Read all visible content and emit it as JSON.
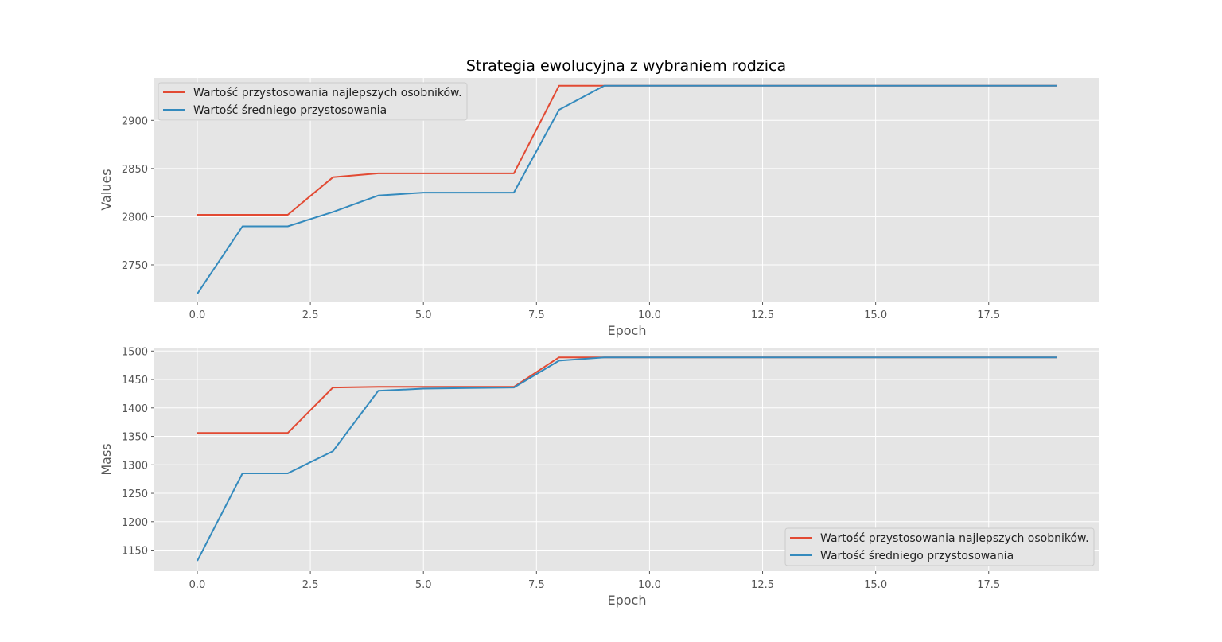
{
  "figure": {
    "title": "Strategia ewolucyjna z wybraniem rodzica"
  },
  "chart_data": [
    {
      "type": "line",
      "title": "Strategia ewolucyjna z wybraniem rodzica",
      "xlabel": "Epoch",
      "ylabel": "Values",
      "xlim": [
        -0.95,
        19.95
      ],
      "ylim": [
        2712,
        2944
      ],
      "xticks": [
        0.0,
        2.5,
        5.0,
        7.5,
        10.0,
        12.5,
        15.0,
        17.5
      ],
      "xtick_labels": [
        "0.0",
        "2.5",
        "5.0",
        "7.5",
        "10.0",
        "12.5",
        "15.0",
        "17.5"
      ],
      "yticks": [
        2750,
        2800,
        2850,
        2900
      ],
      "ytick_labels": [
        "2750",
        "2800",
        "2850",
        "2900"
      ],
      "grid": true,
      "legend_position": "upper-left",
      "x": [
        0,
        1,
        2,
        3,
        4,
        5,
        6,
        7,
        8,
        9,
        10,
        11,
        12,
        13,
        14,
        15,
        16,
        17,
        18,
        19
      ],
      "series": [
        {
          "name": "Wartość przystosowania najlepszych osobników.",
          "color": "#e24a33",
          "values": [
            2802,
            2802,
            2802,
            2841,
            2845,
            2845,
            2845,
            2845,
            2936,
            2936,
            2936,
            2936,
            2936,
            2936,
            2936,
            2936,
            2936,
            2936,
            2936,
            2936
          ]
        },
        {
          "name": "Wartość średniego przystosowania",
          "color": "#348abd",
          "values": [
            2720,
            2790,
            2790,
            2805,
            2822,
            2825,
            2825,
            2825,
            2911,
            2936,
            2936,
            2936,
            2936,
            2936,
            2936,
            2936,
            2936,
            2936,
            2936,
            2936
          ]
        }
      ]
    },
    {
      "type": "line",
      "title": "",
      "xlabel": "Epoch",
      "ylabel": "Mass",
      "xlim": [
        -0.95,
        19.95
      ],
      "ylim": [
        1113,
        1506
      ],
      "xticks": [
        0.0,
        2.5,
        5.0,
        7.5,
        10.0,
        12.5,
        15.0,
        17.5
      ],
      "xtick_labels": [
        "0.0",
        "2.5",
        "5.0",
        "7.5",
        "10.0",
        "12.5",
        "15.0",
        "17.5"
      ],
      "yticks": [
        1150,
        1200,
        1250,
        1300,
        1350,
        1400,
        1450,
        1500
      ],
      "ytick_labels": [
        "1150",
        "1200",
        "1250",
        "1300",
        "1350",
        "1400",
        "1450",
        "1500"
      ],
      "grid": true,
      "legend_position": "lower-right",
      "x": [
        0,
        1,
        2,
        3,
        4,
        5,
        6,
        7,
        8,
        9,
        10,
        11,
        12,
        13,
        14,
        15,
        16,
        17,
        18,
        19
      ],
      "series": [
        {
          "name": "Wartość przystosowania najlepszych osobników.",
          "color": "#e24a33",
          "values": [
            1356,
            1356,
            1356,
            1436,
            1437,
            1437,
            1437,
            1437,
            1489,
            1489,
            1489,
            1489,
            1489,
            1489,
            1489,
            1489,
            1489,
            1489,
            1489,
            1489
          ]
        },
        {
          "name": "Wartość średniego przystosowania",
          "color": "#348abd",
          "values": [
            1131,
            1285,
            1285,
            1324,
            1430,
            1434,
            1435,
            1436,
            1483,
            1489,
            1489,
            1489,
            1489,
            1489,
            1489,
            1489,
            1489,
            1489,
            1489,
            1489
          ]
        }
      ]
    }
  ]
}
